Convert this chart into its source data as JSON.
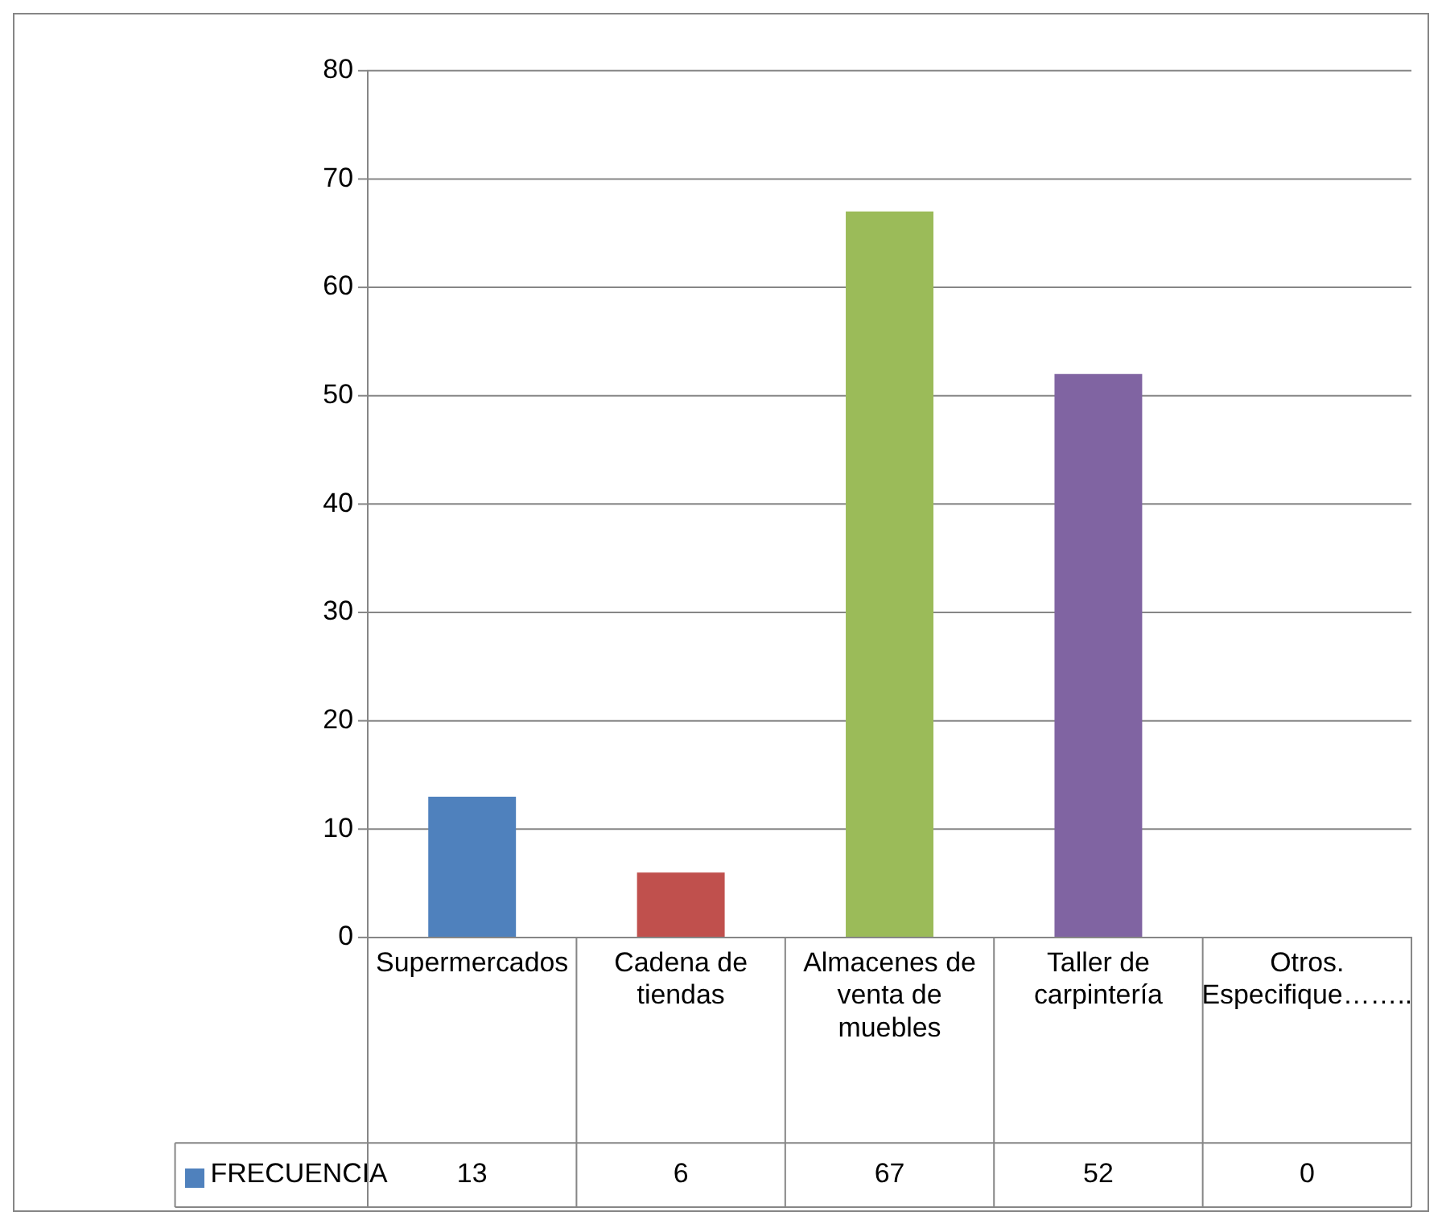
{
  "chart_data": {
    "type": "bar",
    "categories": [
      "Supermercados",
      "Cadena de tiendas",
      "Almacenes de venta de muebles",
      "Taller de carpintería",
      "Otros. Especifique…….."
    ],
    "series": [
      {
        "name": "FRECUENCIA",
        "color": "#4f81bd",
        "colors": [
          "#4f81bd",
          "#c0504d",
          "#9bbb59",
          "#8064a2",
          "#4bacc6"
        ],
        "values": [
          13,
          6,
          67,
          52,
          0
        ]
      }
    ],
    "ylim": [
      0,
      80
    ],
    "yticks": [
      0,
      10,
      20,
      30,
      40,
      50,
      60,
      70,
      80
    ],
    "grid": "y",
    "legend": "bottom",
    "data_labels": true
  }
}
